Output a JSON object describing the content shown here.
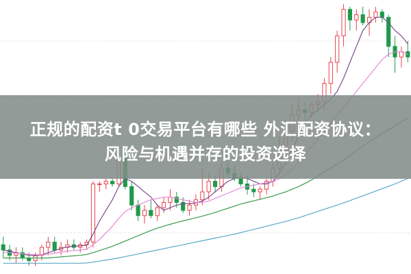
{
  "banner": {
    "line1": "正规的配资t 0交易平台有哪些 外汇配资协议：",
    "line2": "风险与机遇并存的投资选择"
  },
  "chart_data": {
    "type": "candlestick",
    "title": "",
    "xlabel": "",
    "ylabel": "",
    "ylim": [
      0,
      100
    ],
    "grid": "horizontal dotted",
    "colors": {
      "up": "#e8414a",
      "down": "#1f9a4a",
      "ma5": "#7a4c8c",
      "ma10": "#e58ad8",
      "ma20": "#3a9a4a",
      "ma60": "#5aa8c8",
      "grid": "#c8c8c8"
    },
    "candles": [
      {
        "o": 9,
        "h": 12,
        "l": 4,
        "c": 7
      },
      {
        "o": 7,
        "h": 9,
        "l": 3,
        "c": 5
      },
      {
        "o": 5,
        "h": 8,
        "l": 2,
        "c": 6
      },
      {
        "o": 6,
        "h": 8,
        "l": 3,
        "c": 4
      },
      {
        "o": 4,
        "h": 6,
        "l": 1,
        "c": 3
      },
      {
        "o": 3,
        "h": 6,
        "l": 1,
        "c": 5
      },
      {
        "o": 5,
        "h": 9,
        "l": 3,
        "c": 8
      },
      {
        "o": 8,
        "h": 12,
        "l": 5,
        "c": 10
      },
      {
        "o": 10,
        "h": 12,
        "l": 6,
        "c": 7
      },
      {
        "o": 7,
        "h": 10,
        "l": 5,
        "c": 8
      },
      {
        "o": 8,
        "h": 11,
        "l": 6,
        "c": 9
      },
      {
        "o": 9,
        "h": 11,
        "l": 7,
        "c": 8
      },
      {
        "o": 8,
        "h": 10,
        "l": 6,
        "c": 9
      },
      {
        "o": 9,
        "h": 11,
        "l": 7,
        "c": 10
      },
      {
        "o": 10,
        "h": 33,
        "l": 8,
        "c": 32
      },
      {
        "o": 32,
        "h": 33,
        "l": 29,
        "c": 32
      },
      {
        "o": 32,
        "h": 34,
        "l": 30,
        "c": 33
      },
      {
        "o": 33,
        "h": 34,
        "l": 31,
        "c": 32
      },
      {
        "o": 32,
        "h": 45,
        "l": 31,
        "c": 42
      },
      {
        "o": 42,
        "h": 44,
        "l": 30,
        "c": 31
      },
      {
        "o": 31,
        "h": 33,
        "l": 22,
        "c": 24
      },
      {
        "o": 24,
        "h": 26,
        "l": 18,
        "c": 20
      },
      {
        "o": 20,
        "h": 24,
        "l": 17,
        "c": 22
      },
      {
        "o": 22,
        "h": 26,
        "l": 19,
        "c": 20
      },
      {
        "o": 20,
        "h": 24,
        "l": 18,
        "c": 23
      },
      {
        "o": 23,
        "h": 27,
        "l": 21,
        "c": 25
      },
      {
        "o": 25,
        "h": 30,
        "l": 22,
        "c": 27
      },
      {
        "o": 27,
        "h": 29,
        "l": 23,
        "c": 25
      },
      {
        "o": 25,
        "h": 27,
        "l": 21,
        "c": 22
      },
      {
        "o": 22,
        "h": 26,
        "l": 20,
        "c": 24
      },
      {
        "o": 24,
        "h": 28,
        "l": 22,
        "c": 26
      },
      {
        "o": 26,
        "h": 38,
        "l": 24,
        "c": 29
      },
      {
        "o": 29,
        "h": 36,
        "l": 26,
        "c": 33
      },
      {
        "o": 33,
        "h": 35,
        "l": 29,
        "c": 31
      },
      {
        "o": 31,
        "h": 40,
        "l": 29,
        "c": 38
      },
      {
        "o": 38,
        "h": 42,
        "l": 34,
        "c": 36
      },
      {
        "o": 36,
        "h": 39,
        "l": 33,
        "c": 34
      },
      {
        "o": 34,
        "h": 36,
        "l": 31,
        "c": 32
      },
      {
        "o": 32,
        "h": 35,
        "l": 28,
        "c": 30
      },
      {
        "o": 30,
        "h": 32,
        "l": 27,
        "c": 29
      },
      {
        "o": 29,
        "h": 31,
        "l": 26,
        "c": 30
      },
      {
        "o": 30,
        "h": 34,
        "l": 28,
        "c": 33
      },
      {
        "o": 33,
        "h": 40,
        "l": 31,
        "c": 38
      },
      {
        "o": 38,
        "h": 50,
        "l": 36,
        "c": 45
      },
      {
        "o": 45,
        "h": 56,
        "l": 43,
        "c": 52
      },
      {
        "o": 52,
        "h": 62,
        "l": 48,
        "c": 58
      },
      {
        "o": 58,
        "h": 65,
        "l": 55,
        "c": 60
      },
      {
        "o": 60,
        "h": 63,
        "l": 56,
        "c": 59
      },
      {
        "o": 59,
        "h": 63,
        "l": 57,
        "c": 62
      },
      {
        "o": 62,
        "h": 66,
        "l": 59,
        "c": 63
      },
      {
        "o": 63,
        "h": 72,
        "l": 60,
        "c": 70
      },
      {
        "o": 70,
        "h": 80,
        "l": 66,
        "c": 78
      },
      {
        "o": 78,
        "h": 90,
        "l": 74,
        "c": 88
      },
      {
        "o": 88,
        "h": 100,
        "l": 84,
        "c": 98
      },
      {
        "o": 98,
        "h": 99,
        "l": 90,
        "c": 94
      },
      {
        "o": 94,
        "h": 98,
        "l": 90,
        "c": 96
      },
      {
        "o": 96,
        "h": 99,
        "l": 92,
        "c": 93
      },
      {
        "o": 93,
        "h": 98,
        "l": 88,
        "c": 95
      },
      {
        "o": 95,
        "h": 99,
        "l": 93,
        "c": 97
      },
      {
        "o": 97,
        "h": 98,
        "l": 93,
        "c": 95
      },
      {
        "o": 95,
        "h": 96,
        "l": 80,
        "c": 84
      },
      {
        "o": 84,
        "h": 88,
        "l": 74,
        "c": 80
      },
      {
        "o": 80,
        "h": 84,
        "l": 76,
        "c": 82
      },
      {
        "o": 82,
        "h": 86,
        "l": 78,
        "c": 80
      }
    ],
    "ma_lines": [
      {
        "key": "ma5",
        "values": [
          7,
          6.5,
          6,
          5.5,
          5,
          4.8,
          5.2,
          6,
          6.8,
          7.6,
          8.2,
          8.4,
          8.6,
          8.8,
          13,
          18,
          22,
          26,
          31,
          34,
          33,
          31,
          29,
          27,
          24,
          22,
          23,
          24,
          24.5,
          24.5,
          24.8,
          25.5,
          27,
          29,
          31,
          33,
          34,
          34.5,
          34,
          33,
          32,
          32,
          33,
          36,
          40,
          45,
          50,
          55,
          58,
          60,
          62,
          64,
          67,
          72,
          78,
          84,
          90,
          93,
          95,
          95,
          93,
          90,
          88,
          85
        ]
      },
      {
        "key": "ma10",
        "values": [
          6,
          6,
          5.8,
          5.6,
          5.4,
          5.2,
          5.2,
          5.4,
          5.8,
          6.2,
          6.6,
          6.8,
          7,
          7.3,
          9,
          11,
          13.5,
          16,
          19,
          21.5,
          23,
          24,
          25,
          26,
          26.5,
          27,
          27,
          26.5,
          26,
          25.5,
          25,
          25,
          25.5,
          26.5,
          27.5,
          28.5,
          29.5,
          30.5,
          31,
          31.5,
          32,
          32.5,
          33,
          34,
          35.5,
          37.5,
          40,
          43,
          46,
          49,
          52,
          55,
          58,
          61,
          64,
          67,
          70,
          73,
          76,
          79,
          81,
          82,
          82,
          81
        ]
      },
      {
        "key": "ma20",
        "values": [
          4,
          4,
          4,
          4,
          4,
          4,
          4,
          4,
          4.2,
          4.4,
          4.6,
          4.8,
          5,
          5.3,
          6,
          6.8,
          7.6,
          8.4,
          9.4,
          10.4,
          11.4,
          12.4,
          13.4,
          14.4,
          15.3,
          16,
          16.7,
          17.4,
          18,
          18.6,
          19.2,
          19.8,
          20.5,
          21.2,
          22,
          22.8,
          23.6,
          24.4,
          25,
          25.6,
          26.2,
          26.8,
          27.4,
          28.2,
          29,
          30,
          31,
          32.2,
          33.5,
          35,
          36.5,
          38,
          39.5,
          41,
          42.7,
          44.5,
          46.3,
          48,
          49.5,
          51,
          52.5,
          54,
          55.5,
          57
        ]
      },
      {
        "key": "ma60",
        "values": [
          2,
          2,
          2,
          2,
          2,
          2,
          2,
          2,
          2,
          2,
          2,
          2,
          2,
          2.1,
          2.4,
          2.8,
          3.2,
          3.6,
          4,
          4.5,
          5,
          5.5,
          6,
          6.5,
          7,
          7.5,
          8,
          8.5,
          9,
          9.5,
          10,
          10.5,
          11,
          11.5,
          12,
          12.5,
          13,
          13.6,
          14.2,
          14.8,
          15.4,
          16,
          16.6,
          17.2,
          17.8,
          18.5,
          19.2,
          20,
          20.8,
          21.6,
          22.4,
          23.2,
          24,
          24.8,
          25.7,
          26.6,
          27.5,
          28.4,
          29.3,
          30.2,
          31.1,
          32,
          33,
          34
        ]
      }
    ]
  }
}
